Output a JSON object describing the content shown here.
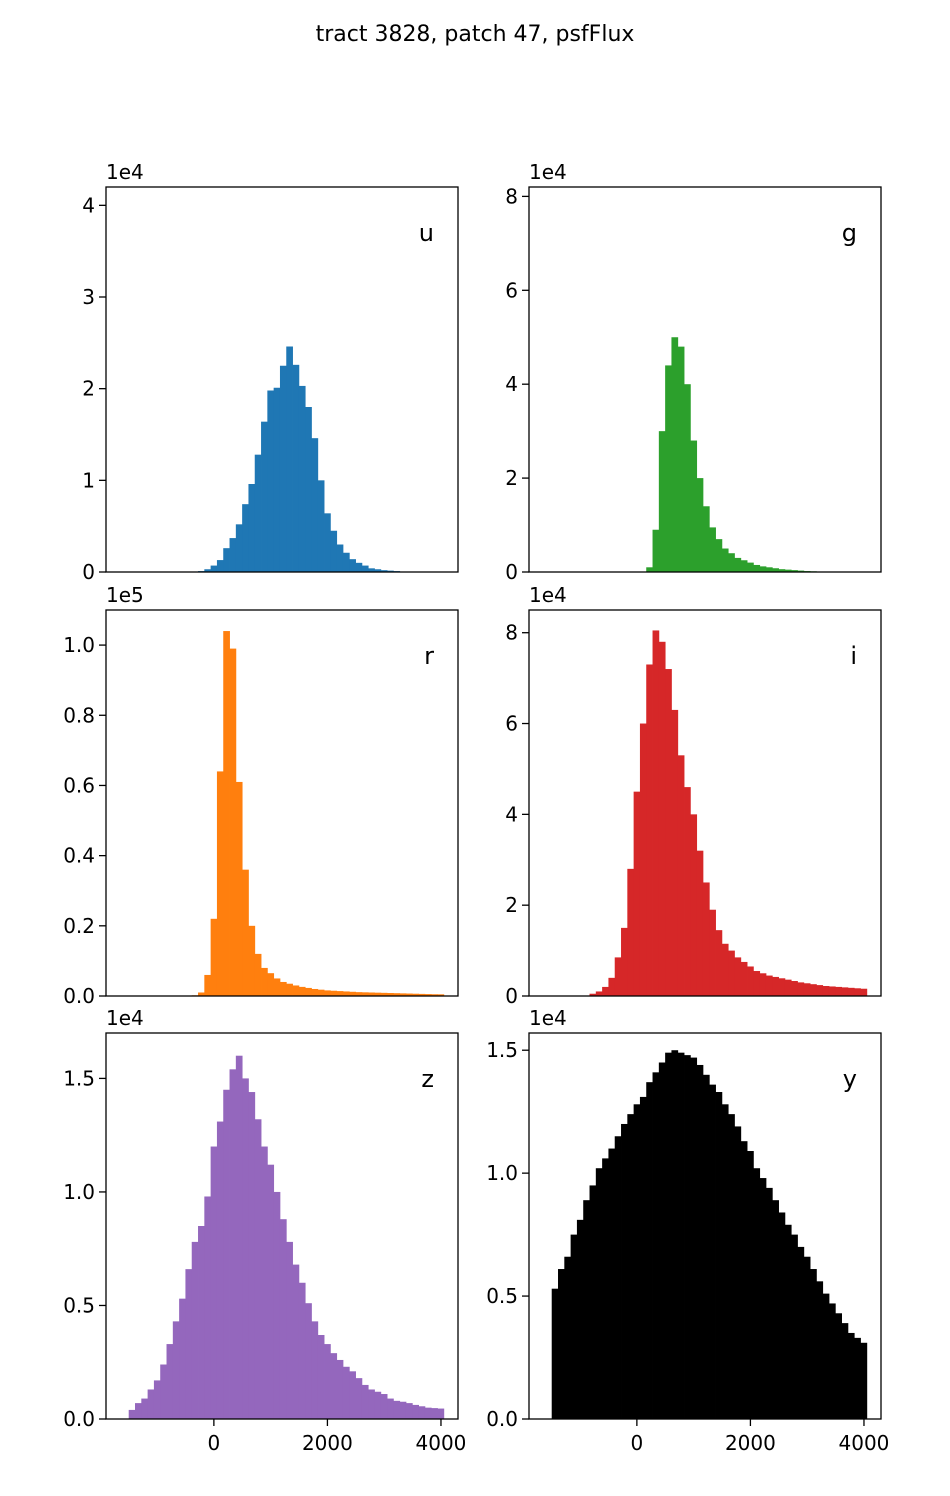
{
  "title": "tract 3828, patch 47, psfFlux",
  "chart_data": [
    {
      "type": "bar",
      "panel_label": "u",
      "color": "#1f77b4",
      "offset_label": "1e4",
      "xlim": [
        -1900,
        4300
      ],
      "ylim": [
        0,
        42000
      ],
      "yticks": [
        0,
        10000,
        20000,
        30000,
        40000
      ],
      "ytick_labels": [
        "0",
        "1",
        "2",
        "3",
        "4"
      ],
      "xticks": [],
      "xtick_labels": [],
      "bins": {
        "start": -1500,
        "width": 111
      },
      "values": [
        0,
        0,
        0,
        0,
        0,
        0,
        0,
        0,
        0,
        0,
        0,
        100,
        300,
        700,
        1300,
        2600,
        3700,
        5200,
        7400,
        9600,
        12800,
        16400,
        19800,
        20100,
        22500,
        24600,
        22600,
        20300,
        18000,
        14600,
        10000,
        6400,
        4500,
        3000,
        2100,
        1400,
        1000,
        700,
        400,
        300,
        200,
        150,
        100,
        50,
        30,
        20,
        10,
        0,
        0,
        0
      ]
    },
    {
      "type": "bar",
      "panel_label": "g",
      "color": "#2ca02c",
      "offset_label": "1e4",
      "xlim": [
        -1900,
        4300
      ],
      "ylim": [
        0,
        82000
      ],
      "yticks": [
        0,
        20000,
        40000,
        60000,
        80000
      ],
      "ytick_labels": [
        "0",
        "2",
        "4",
        "6",
        "8"
      ],
      "xticks": [],
      "xtick_labels": [],
      "bins": {
        "start": -1500,
        "width": 111
      },
      "values": [
        0,
        0,
        0,
        0,
        0,
        0,
        0,
        0,
        0,
        0,
        0,
        0,
        0,
        0,
        0,
        1000,
        9000,
        30000,
        44000,
        50000,
        48000,
        40000,
        28000,
        20000,
        14000,
        9500,
        7000,
        5000,
        4000,
        3000,
        2500,
        2000,
        1500,
        1200,
        1000,
        800,
        600,
        500,
        400,
        300,
        200,
        150,
        100,
        50,
        30,
        20,
        10,
        0,
        0,
        0
      ]
    },
    {
      "type": "bar",
      "panel_label": "r",
      "color": "#ff7f0e",
      "offset_label": "1e5",
      "xlim": [
        -1900,
        4300
      ],
      "ylim": [
        0,
        110000
      ],
      "yticks": [
        0,
        20000,
        40000,
        60000,
        80000,
        100000
      ],
      "ytick_labels": [
        "0.0",
        "0.2",
        "0.4",
        "0.6",
        "0.8",
        "1.0"
      ],
      "xticks": [],
      "xtick_labels": [],
      "bins": {
        "start": -1500,
        "width": 111
      },
      "values": [
        0,
        0,
        0,
        0,
        0,
        0,
        0,
        0,
        0,
        0,
        200,
        1000,
        6000,
        22000,
        64000,
        104000,
        99000,
        61000,
        36000,
        20000,
        12000,
        8000,
        6500,
        5000,
        4000,
        3500,
        3000,
        2600,
        2300,
        2000,
        1800,
        1600,
        1500,
        1400,
        1300,
        1200,
        1100,
        1050,
        1000,
        950,
        900,
        850,
        800,
        750,
        700,
        650,
        600,
        550,
        500,
        480
      ]
    },
    {
      "type": "bar",
      "panel_label": "i",
      "color": "#d62728",
      "offset_label": "1e4",
      "xlim": [
        -1900,
        4300
      ],
      "ylim": [
        0,
        85000
      ],
      "yticks": [
        0,
        20000,
        40000,
        60000,
        80000
      ],
      "ytick_labels": [
        "0",
        "2",
        "4",
        "6",
        "8"
      ],
      "xticks": [],
      "xtick_labels": [],
      "bins": {
        "start": -1500,
        "width": 111
      },
      "values": [
        0,
        0,
        0,
        0,
        0,
        0,
        500,
        1000,
        2000,
        4000,
        8500,
        15000,
        28000,
        45000,
        60000,
        73000,
        80500,
        78000,
        72000,
        63000,
        53000,
        46000,
        40000,
        32000,
        25000,
        19000,
        14500,
        11500,
        10000,
        8500,
        7500,
        6500,
        5500,
        5000,
        4500,
        4200,
        3900,
        3600,
        3300,
        3000,
        2800,
        2600,
        2400,
        2200,
        2100,
        2000,
        1900,
        1800,
        1700,
        1600
      ]
    },
    {
      "type": "bar",
      "panel_label": "z",
      "color": "#9467bd",
      "offset_label": "1e4",
      "xlim": [
        -1900,
        4300
      ],
      "ylim": [
        0,
        17000
      ],
      "yticks": [
        0,
        5000,
        10000,
        15000
      ],
      "ytick_labels": [
        "0.0",
        "0.5",
        "1.0",
        "1.5"
      ],
      "xticks": [
        0,
        2000,
        4000
      ],
      "xtick_labels": [
        "0",
        "2000",
        "4000"
      ],
      "bins": {
        "start": -1500,
        "width": 111
      },
      "values": [
        400,
        700,
        900,
        1300,
        1700,
        2400,
        3300,
        4300,
        5300,
        6600,
        7800,
        8500,
        9800,
        12000,
        13100,
        14500,
        15400,
        16000,
        15000,
        14400,
        13200,
        12000,
        11200,
        10000,
        8800,
        7800,
        6800,
        6000,
        5100,
        4300,
        3700,
        3300,
        2900,
        2600,
        2300,
        2100,
        1800,
        1500,
        1300,
        1200,
        1100,
        900,
        800,
        760,
        700,
        620,
        560,
        500,
        480,
        460
      ]
    },
    {
      "type": "bar",
      "panel_label": "y",
      "color": "#000000",
      "offset_label": "1e4",
      "xlim": [
        -1900,
        4300
      ],
      "ylim": [
        0,
        15700
      ],
      "yticks": [
        0,
        5000,
        10000,
        15000
      ],
      "ytick_labels": [
        "0.0",
        "0.5",
        "1.0",
        "1.5"
      ],
      "xticks": [
        0,
        2000,
        4000
      ],
      "xtick_labels": [
        "0",
        "2000",
        "4000"
      ],
      "bins": {
        "start": -1500,
        "width": 111
      },
      "values": [
        5300,
        6100,
        6600,
        7500,
        8100,
        8900,
        9500,
        10200,
        10600,
        11000,
        11500,
        12000,
        12400,
        12800,
        13100,
        13700,
        14100,
        14500,
        14900,
        15000,
        14900,
        14800,
        14700,
        14400,
        14000,
        13600,
        13300,
        12800,
        12400,
        11900,
        11300,
        10900,
        10200,
        9800,
        9400,
        8900,
        8400,
        7900,
        7500,
        7000,
        6600,
        6100,
        5600,
        5100,
        4700,
        4300,
        3900,
        3500,
        3300,
        3100
      ]
    }
  ]
}
